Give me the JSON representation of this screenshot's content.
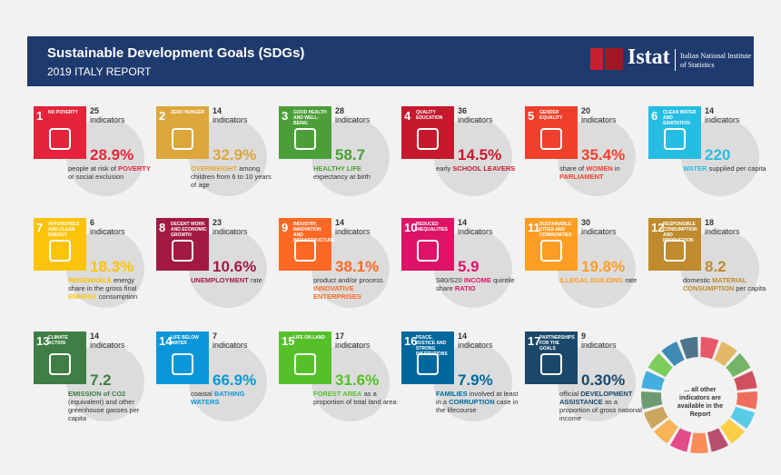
{
  "header": {
    "title": "Sustainable Development Goals (SDGs)",
    "subtitle": "2019 ITALY REPORT"
  },
  "logo": {
    "name": "Istat",
    "tagline": "Italian National Institute of Statistics"
  },
  "indicator_unit": "indicators",
  "goals": [
    {
      "number": 1,
      "name": "NO POVERTY",
      "color": "#e5243b",
      "count": 25,
      "value": "28.9%",
      "desc": [
        {
          "text": "people at risk of "
        },
        {
          "text": "POVERTY",
          "em": true
        },
        {
          "text": " or social exclusion"
        }
      ]
    },
    {
      "number": 2,
      "name": "ZERO HUNGER",
      "color": "#dda63a",
      "count": 14,
      "value": "32.9%",
      "desc": [
        {
          "text": "OVERWEIGHT",
          "em": true
        },
        {
          "text": " among children from 6 to 10 years of age"
        }
      ]
    },
    {
      "number": 3,
      "name": "GOOD HEALTH AND WELL-BEING",
      "color": "#4c9f38",
      "count": 28,
      "value": "58.7",
      "desc": [
        {
          "text": "HEALTHY LIFE",
          "em": true
        },
        {
          "text": " expectancy at birth"
        }
      ]
    },
    {
      "number": 4,
      "name": "QUALITY EDUCATION",
      "color": "#c5192d",
      "count": 36,
      "value": "14.5%",
      "desc": [
        {
          "text": "early "
        },
        {
          "text": "SCHOOL LEAVERS",
          "em": true
        }
      ]
    },
    {
      "number": 5,
      "name": "GENDER EQUALITY",
      "color": "#ef402b",
      "count": 20,
      "value": "35.4%",
      "desc": [
        {
          "text": "share of "
        },
        {
          "text": "WOMEN",
          "em": true
        },
        {
          "text": " in "
        },
        {
          "text": "PARLIAMENT",
          "em": true
        }
      ]
    },
    {
      "number": 6,
      "name": "CLEAN WATER AND SANITATION",
      "color": "#26bde2",
      "count": 14,
      "value": "220",
      "desc": [
        {
          "text": "WATER",
          "em": true
        },
        {
          "text": " supplied per capita"
        }
      ]
    },
    {
      "number": 7,
      "name": "AFFORDABLE AND CLEAN ENERGY",
      "color": "#fcc30b",
      "count": 6,
      "value": "18.3%",
      "desc": [
        {
          "text": "RENEWABLE",
          "em": true
        },
        {
          "text": " energy share in the gross final "
        },
        {
          "text": "ENERGY",
          "em": true
        },
        {
          "text": " consumption"
        }
      ]
    },
    {
      "number": 8,
      "name": "DECENT WORK AND ECONOMIC GROWTH",
      "color": "#a21942",
      "count": 23,
      "value": "10.6%",
      "desc": [
        {
          "text": "UNEMPLOYMENT",
          "em": true
        },
        {
          "text": " rate"
        }
      ]
    },
    {
      "number": 9,
      "name": "INDUSTRY, INNOVATION AND INFRASTRUCTURE",
      "color": "#fd6925",
      "count": 14,
      "value": "38.1%",
      "desc": [
        {
          "text": "product and/or process "
        },
        {
          "text": "INNOVATIVE ENTERPRISES",
          "em": true
        }
      ]
    },
    {
      "number": 10,
      "name": "REDUCED INEQUALITIES",
      "color": "#dd1367",
      "count": 14,
      "value": "5.9",
      "desc": [
        {
          "text": "S80/S20 "
        },
        {
          "text": "INCOME",
          "em": true
        },
        {
          "text": " quintile share "
        },
        {
          "text": "RATIO",
          "em": true
        }
      ]
    },
    {
      "number": 11,
      "name": "SUSTAINABLE CITIES AND COMMUNITIES",
      "color": "#fd9d24",
      "count": 30,
      "value": "19.8%",
      "desc": [
        {
          "text": "ILLEGAL BUILDING",
          "em": true
        },
        {
          "text": " rate"
        }
      ]
    },
    {
      "number": 12,
      "name": "RESPONSIBLE CONSUMPTION AND PRODUCTION",
      "color": "#bf8b2e",
      "count": 18,
      "value": "8.2",
      "desc": [
        {
          "text": "domestic "
        },
        {
          "text": "MATERIAL CONSUMPTION",
          "em": true
        },
        {
          "text": " per capita"
        }
      ]
    },
    {
      "number": 13,
      "name": "CLIMATE ACTION",
      "color": "#3f7e44",
      "count": 14,
      "value": "7.2",
      "desc": [
        {
          "text": "EMISSION of CO2",
          "em": true
        },
        {
          "text": " (equivalent) and other greenhouse gasses per capita"
        }
      ]
    },
    {
      "number": 14,
      "name": "LIFE BELOW WATER",
      "color": "#0a97d9",
      "count": 7,
      "value": "66.9%",
      "desc": [
        {
          "text": "coastal "
        },
        {
          "text": "BATHING WATERS",
          "em": true
        }
      ]
    },
    {
      "number": 15,
      "name": "LIFE ON LAND",
      "color": "#56c02b",
      "count": 17,
      "value": "31.6%",
      "desc": [
        {
          "text": "FOREST AREA",
          "em": true
        },
        {
          "text": " as a proportion of total land area"
        }
      ]
    },
    {
      "number": 16,
      "name": "PEACE, JUSTICE AND STRONG INSTITUTIONS",
      "color": "#00689d",
      "count": 14,
      "value": "7.9%",
      "desc": [
        {
          "text": "FAMILIES",
          "em": true
        },
        {
          "text": " involved at least in a "
        },
        {
          "text": "CORRUPTION",
          "em": true
        },
        {
          "text": " case in the lifecourse"
        }
      ]
    },
    {
      "number": 17,
      "name": "PARTNERSHIPS FOR THE GOALS",
      "color": "#19486a",
      "count": 9,
      "value": "0.30%",
      "desc": [
        {
          "text": "official "
        },
        {
          "text": "DEVELOPMENT ASSISTANCE",
          "em": true
        },
        {
          "text": " as a proportion of gross national income"
        }
      ]
    }
  ],
  "footer": {
    "note": "... all other indicators are available in the Report"
  }
}
